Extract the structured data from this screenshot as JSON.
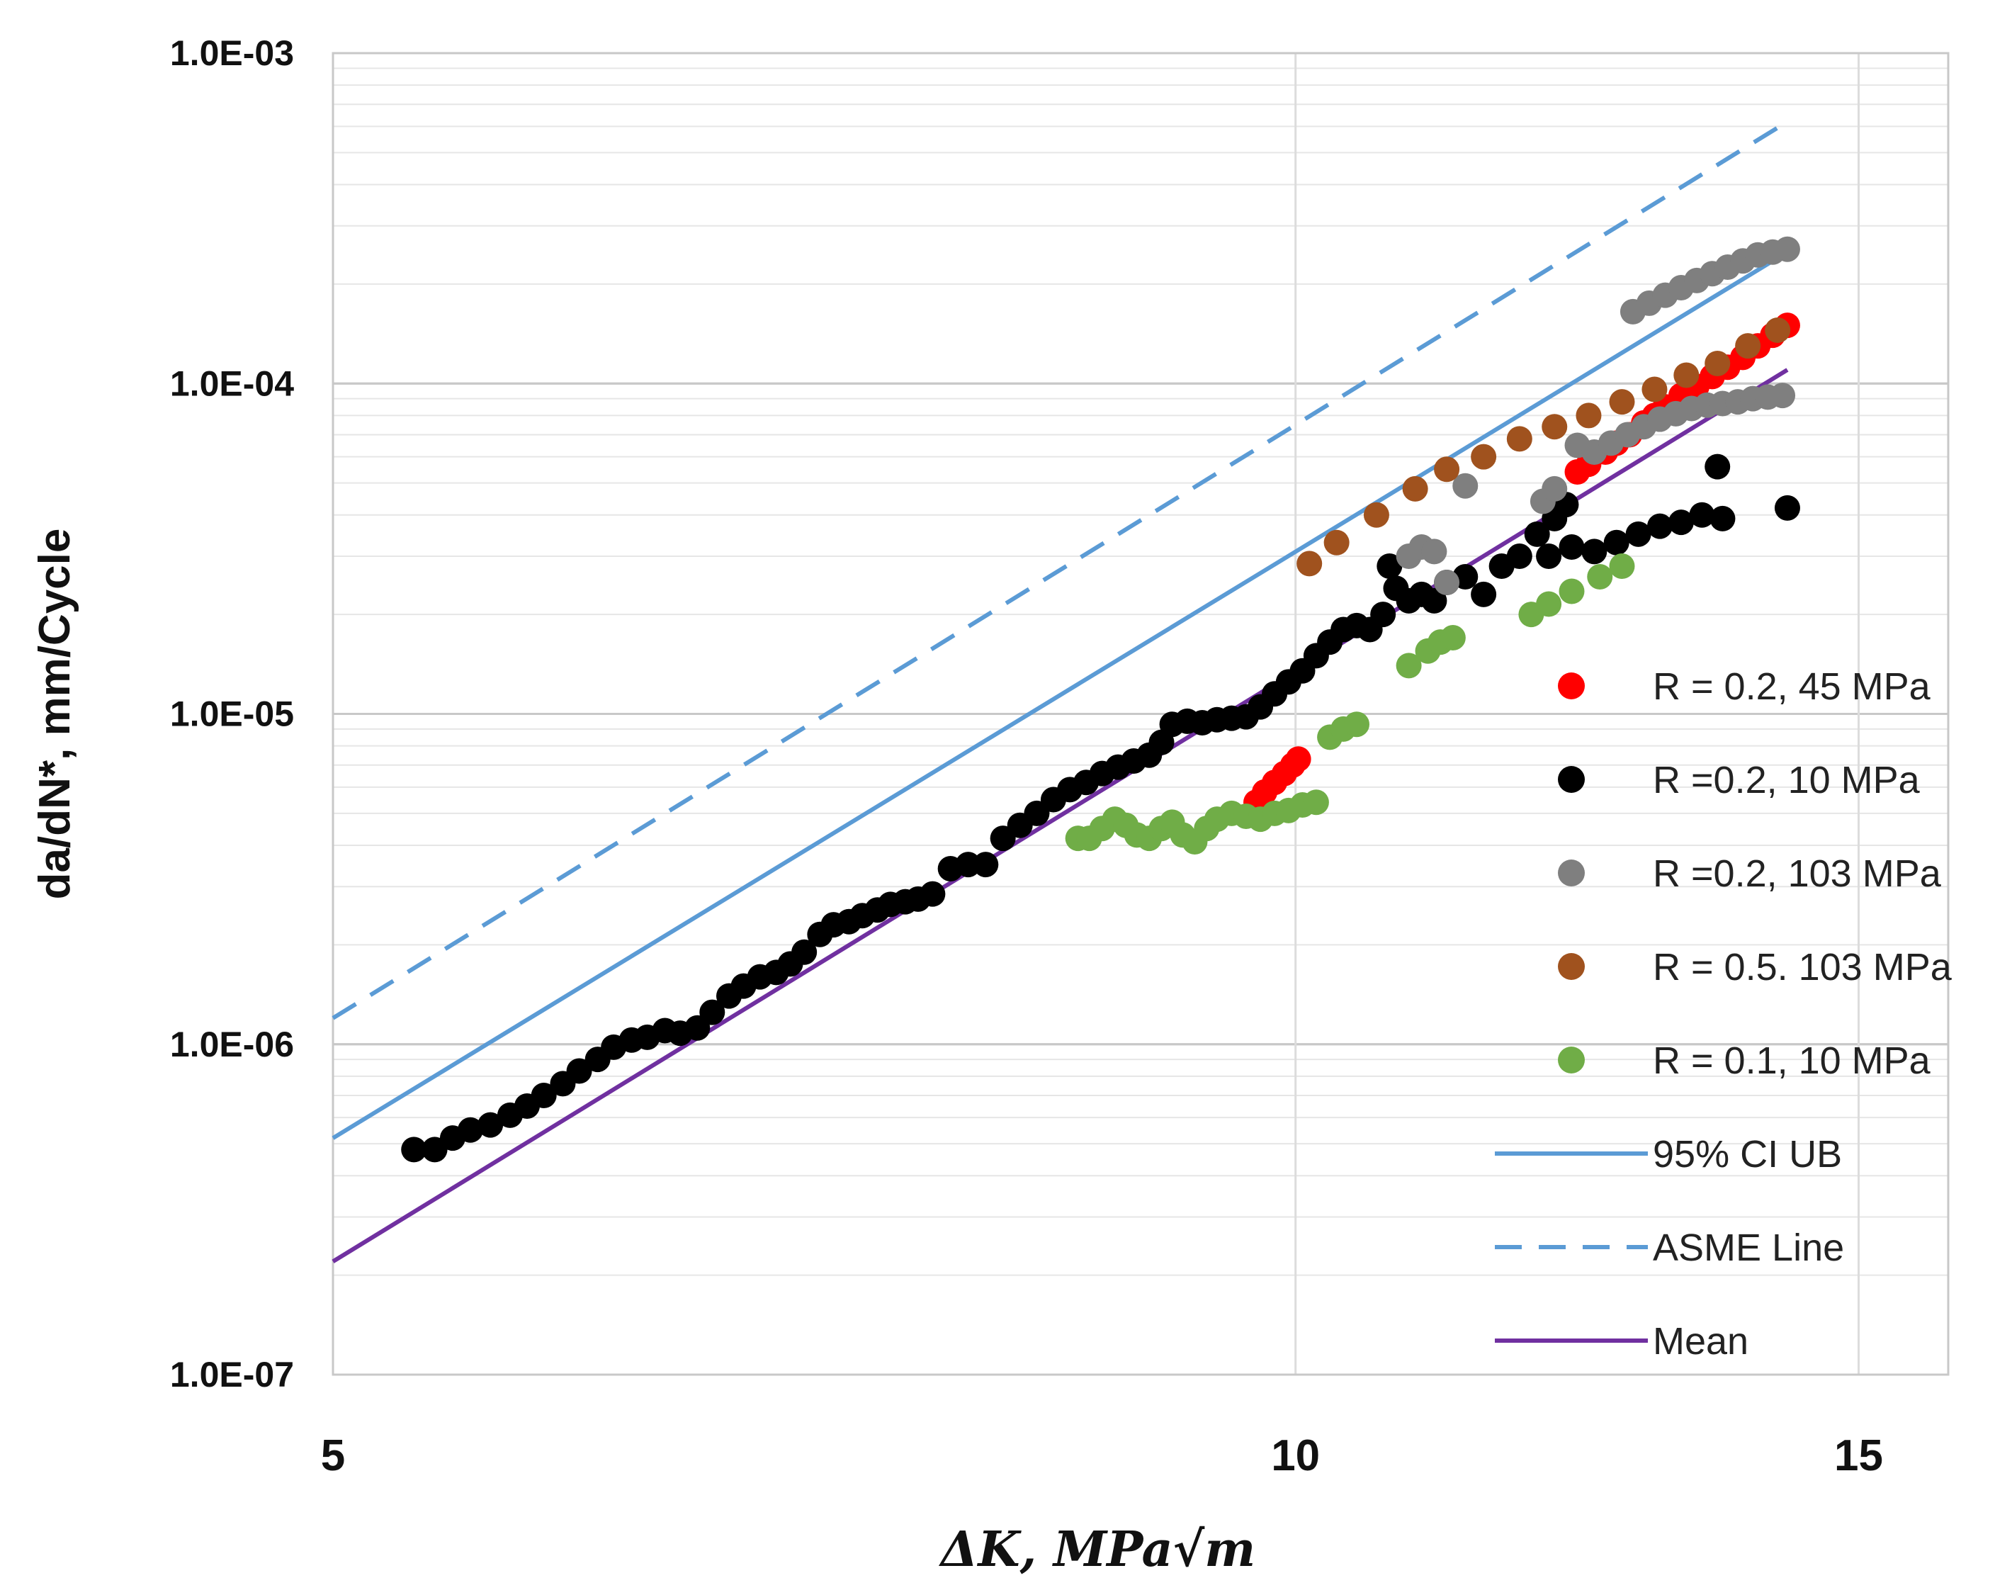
{
  "chart_data": {
    "type": "scatter",
    "title": "",
    "xlabel": "ΔK, MPa√m",
    "ylabel": "da/dN*, mm/Cycle",
    "xscale": "log",
    "yscale": "log",
    "xlim": [
      5,
      16
    ],
    "ylim": [
      1e-07,
      0.001
    ],
    "x_ticks": [
      5,
      10,
      15
    ],
    "x_tick_labels": [
      "5",
      "10",
      "15"
    ],
    "y_ticks": [
      1e-07,
      1e-06,
      1e-05,
      0.0001,
      0.001
    ],
    "y_tick_labels": [
      "1.0E-07",
      "1.0E-06",
      "1.0E-05",
      "1.0E-04",
      "1.0E-03"
    ],
    "grid": true,
    "legend_position": "right",
    "series": [
      {
        "name": "R = 0.2, 45 MPa",
        "kind": "scatter",
        "color": "#ff0000",
        "points": [
          [
            9.72,
            5.4e-06
          ],
          [
            9.78,
            5.8e-06
          ],
          [
            9.85,
            6.2e-06
          ],
          [
            9.92,
            6.6e-06
          ],
          [
            9.98,
            7e-06
          ],
          [
            10.02,
            7.3e-06
          ],
          [
            12.25,
            5.4e-05
          ],
          [
            12.35,
            5.7e-05
          ],
          [
            12.5,
            6.2e-05
          ],
          [
            12.6,
            6.6e-05
          ],
          [
            12.72,
            7e-05
          ],
          [
            12.85,
            7.6e-05
          ],
          [
            12.95,
            8e-05
          ],
          [
            13.05,
            8.5e-05
          ],
          [
            13.2,
            9.2e-05
          ],
          [
            13.35,
            9.8e-05
          ],
          [
            13.5,
            0.000105
          ],
          [
            13.65,
            0.000112
          ],
          [
            13.8,
            0.00012
          ],
          [
            13.95,
            0.00013
          ],
          [
            14.1,
            0.00014
          ],
          [
            14.25,
            0.00015
          ]
        ]
      },
      {
        "name": "R =0.2, 10 MPa",
        "kind": "scatter",
        "color": "#000000",
        "points": [
          [
            5.3,
            4.8e-07
          ],
          [
            5.38,
            4.8e-07
          ],
          [
            5.45,
            5.2e-07
          ],
          [
            5.52,
            5.5e-07
          ],
          [
            5.6,
            5.7e-07
          ],
          [
            5.68,
            6.1e-07
          ],
          [
            5.75,
            6.5e-07
          ],
          [
            5.82,
            7e-07
          ],
          [
            5.9,
            7.6e-07
          ],
          [
            5.97,
            8.3e-07
          ],
          [
            6.05,
            9e-07
          ],
          [
            6.12,
            9.8e-07
          ],
          [
            6.2,
            1.03e-06
          ],
          [
            6.27,
            1.05e-06
          ],
          [
            6.35,
            1.1e-06
          ],
          [
            6.42,
            1.08e-06
          ],
          [
            6.5,
            1.12e-06
          ],
          [
            6.57,
            1.25e-06
          ],
          [
            6.65,
            1.4e-06
          ],
          [
            6.72,
            1.5e-06
          ],
          [
            6.8,
            1.6e-06
          ],
          [
            6.88,
            1.65e-06
          ],
          [
            6.95,
            1.75e-06
          ],
          [
            7.02,
            1.9e-06
          ],
          [
            7.1,
            2.15e-06
          ],
          [
            7.17,
            2.3e-06
          ],
          [
            7.25,
            2.35e-06
          ],
          [
            7.32,
            2.45e-06
          ],
          [
            7.4,
            2.55e-06
          ],
          [
            7.47,
            2.65e-06
          ],
          [
            7.55,
            2.7e-06
          ],
          [
            7.62,
            2.75e-06
          ],
          [
            7.7,
            2.85e-06
          ],
          [
            7.8,
            3.4e-06
          ],
          [
            7.9,
            3.5e-06
          ],
          [
            8.0,
            3.5e-06
          ],
          [
            8.1,
            4.2e-06
          ],
          [
            8.2,
            4.6e-06
          ],
          [
            8.3,
            5e-06
          ],
          [
            8.4,
            5.5e-06
          ],
          [
            8.5,
            5.9e-06
          ],
          [
            8.6,
            6.2e-06
          ],
          [
            8.7,
            6.6e-06
          ],
          [
            8.8,
            6.9e-06
          ],
          [
            8.9,
            7.2e-06
          ],
          [
            9.0,
            7.5e-06
          ],
          [
            9.08,
            8.2e-06
          ],
          [
            9.15,
            9.3e-06
          ],
          [
            9.25,
            9.5e-06
          ],
          [
            9.35,
            9.4e-06
          ],
          [
            9.45,
            9.6e-06
          ],
          [
            9.55,
            9.7e-06
          ],
          [
            9.65,
            9.8e-06
          ],
          [
            9.75,
            1.05e-05
          ],
          [
            9.85,
            1.15e-05
          ],
          [
            9.95,
            1.25e-05
          ],
          [
            10.05,
            1.35e-05
          ],
          [
            10.15,
            1.5e-05
          ],
          [
            10.25,
            1.65e-05
          ],
          [
            10.35,
            1.8e-05
          ],
          [
            10.45,
            1.85e-05
          ],
          [
            10.55,
            1.8e-05
          ],
          [
            10.65,
            2e-05
          ],
          [
            10.7,
            2.8e-05
          ],
          [
            10.75,
            2.4e-05
          ],
          [
            10.85,
            2.2e-05
          ],
          [
            10.95,
            2.3e-05
          ],
          [
            11.05,
            2.2e-05
          ],
          [
            11.15,
            2.5e-05
          ],
          [
            11.3,
            2.6e-05
          ],
          [
            11.45,
            2.3e-05
          ],
          [
            11.6,
            2.8e-05
          ],
          [
            11.75,
            3e-05
          ],
          [
            11.9,
            3.5e-05
          ],
          [
            12.05,
            3.9e-05
          ],
          [
            12.15,
            4.3e-05
          ],
          [
            12.0,
            3e-05
          ],
          [
            12.2,
            3.2e-05
          ],
          [
            12.4,
            3.1e-05
          ],
          [
            12.6,
            3.3e-05
          ],
          [
            12.8,
            3.5e-05
          ],
          [
            13.0,
            3.7e-05
          ],
          [
            13.2,
            3.8e-05
          ],
          [
            13.4,
            4e-05
          ],
          [
            13.55,
            5.6e-05
          ],
          [
            13.6,
            3.9e-05
          ],
          [
            14.25,
            4.2e-05
          ]
        ]
      },
      {
        "name": "R =0.2, 103 MPa",
        "kind": "scatter",
        "color": "#7f7f7f",
        "points": [
          [
            10.85,
            3e-05
          ],
          [
            10.95,
            3.2e-05
          ],
          [
            11.05,
            3.1e-05
          ],
          [
            11.15,
            2.5e-05
          ],
          [
            11.3,
            4.9e-05
          ],
          [
            11.95,
            4.4e-05
          ],
          [
            12.05,
            4.8e-05
          ],
          [
            12.25,
            6.5e-05
          ],
          [
            12.4,
            6.2e-05
          ],
          [
            12.55,
            6.6e-05
          ],
          [
            12.7,
            7e-05
          ],
          [
            12.85,
            7.4e-05
          ],
          [
            13.0,
            7.8e-05
          ],
          [
            13.15,
            8.1e-05
          ],
          [
            13.3,
            8.4e-05
          ],
          [
            13.45,
            8.6e-05
          ],
          [
            13.6,
            8.7e-05
          ],
          [
            13.75,
            8.8e-05
          ],
          [
            13.9,
            9e-05
          ],
          [
            14.05,
            9.1e-05
          ],
          [
            14.2,
            9.2e-05
          ],
          [
            12.75,
            0.000165
          ],
          [
            12.9,
            0.000175
          ],
          [
            13.05,
            0.000185
          ],
          [
            13.2,
            0.000195
          ],
          [
            13.35,
            0.000205
          ],
          [
            13.5,
            0.000215
          ],
          [
            13.65,
            0.000225
          ],
          [
            13.8,
            0.000235
          ],
          [
            13.95,
            0.000245
          ],
          [
            14.1,
            0.00025
          ],
          [
            14.25,
            0.000255
          ]
        ]
      },
      {
        "name": "R = 0.5. 103 MPa",
        "kind": "scatter",
        "color": "#a0521e",
        "points": [
          [
            10.1,
            2.85e-05
          ],
          [
            10.3,
            3.3e-05
          ],
          [
            10.6,
            4e-05
          ],
          [
            10.9,
            4.8e-05
          ],
          [
            11.15,
            5.5e-05
          ],
          [
            11.45,
            6e-05
          ],
          [
            11.75,
            6.8e-05
          ],
          [
            12.05,
            7.4e-05
          ],
          [
            12.35,
            8e-05
          ],
          [
            12.65,
            8.8e-05
          ],
          [
            12.95,
            9.6e-05
          ],
          [
            13.25,
            0.000106
          ],
          [
            13.55,
            0.000115
          ],
          [
            13.85,
            0.00013
          ],
          [
            14.15,
            0.000145
          ]
        ]
      },
      {
        "name": "R = 0.1, 10 MPa",
        "kind": "scatter",
        "color": "#70ad47",
        "points": [
          [
            8.55,
            4.2e-06
          ],
          [
            8.62,
            4.2e-06
          ],
          [
            8.7,
            4.5e-06
          ],
          [
            8.78,
            4.8e-06
          ],
          [
            8.85,
            4.6e-06
          ],
          [
            8.92,
            4.3e-06
          ],
          [
            9.0,
            4.2e-06
          ],
          [
            9.08,
            4.5e-06
          ],
          [
            9.15,
            4.7e-06
          ],
          [
            9.22,
            4.3e-06
          ],
          [
            9.3,
            4.1e-06
          ],
          [
            9.38,
            4.5e-06
          ],
          [
            9.45,
            4.8e-06
          ],
          [
            9.55,
            5e-06
          ],
          [
            9.65,
            4.9e-06
          ],
          [
            9.75,
            4.8e-06
          ],
          [
            9.85,
            5e-06
          ],
          [
            9.95,
            5.1e-06
          ],
          [
            10.05,
            5.3e-06
          ],
          [
            10.15,
            5.4e-06
          ],
          [
            10.25,
            8.5e-06
          ],
          [
            10.35,
            9e-06
          ],
          [
            10.45,
            9.3e-06
          ],
          [
            10.85,
            1.4e-05
          ],
          [
            11.0,
            1.55e-05
          ],
          [
            11.1,
            1.65e-05
          ],
          [
            11.2,
            1.7e-05
          ],
          [
            11.85,
            2e-05
          ],
          [
            12.0,
            2.15e-05
          ],
          [
            12.2,
            2.35e-05
          ],
          [
            12.45,
            2.6e-05
          ],
          [
            12.65,
            2.8e-05
          ]
        ]
      },
      {
        "name": "95% CI UB",
        "kind": "line",
        "style": "solid",
        "color": "#5b9bd5",
        "points": [
          [
            5.0,
            5.2e-07
          ],
          [
            14.25,
            0.00025
          ]
        ]
      },
      {
        "name": "ASME Line",
        "kind": "line",
        "style": "dashed",
        "color": "#5b9bd5",
        "points": [
          [
            5.0,
            1.2e-06
          ],
          [
            14.25,
            0.00062
          ]
        ]
      },
      {
        "name": "Mean",
        "kind": "line",
        "style": "solid",
        "color": "#7030a0",
        "points": [
          [
            5.0,
            2.2e-07
          ],
          [
            14.25,
            0.00011
          ]
        ]
      }
    ]
  }
}
